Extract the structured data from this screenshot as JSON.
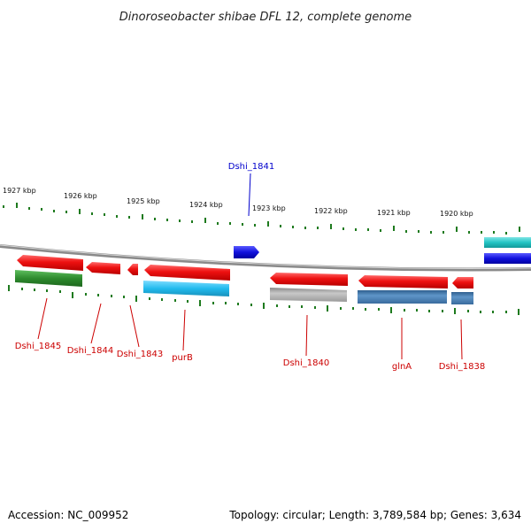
{
  "title": "Dinoroseobacter shibae DFL 12, complete genome",
  "accession": "Accession: NC_009952",
  "summary": "Topology: circular; Length: 3,789,584 bp; Genes: 3,634",
  "ticks": [
    "1927 kbp",
    "1926 kbp",
    "1925 kbp",
    "1924 kbp",
    "1923 kbp",
    "1922 kbp",
    "1921 kbp",
    "1920 kbp"
  ],
  "colors": {
    "red": "#ee1111",
    "green": "#2e8b2e",
    "cyan": "#22bbee",
    "blue": "#1111dd",
    "teal": "#22c4c4",
    "gray": "#a8a8a8",
    "steel": "#4a7fb5",
    "tick": "#1e7a1e",
    "label_red": "#cc0000",
    "label_blue": "#0000cc"
  },
  "genes": [
    {
      "name": "Dshi_1845",
      "color": "red"
    },
    {
      "name": "Dshi_1844",
      "color": "red"
    },
    {
      "name": "Dshi_1843",
      "color": "red"
    },
    {
      "name": "purB",
      "color": "red"
    },
    {
      "name": "Dshi_1841",
      "color": "blue"
    },
    {
      "name": "Dshi_1840",
      "color": "red"
    },
    {
      "name": "glnA",
      "color": "red"
    },
    {
      "name": "Dshi_1838",
      "color": "red"
    }
  ]
}
